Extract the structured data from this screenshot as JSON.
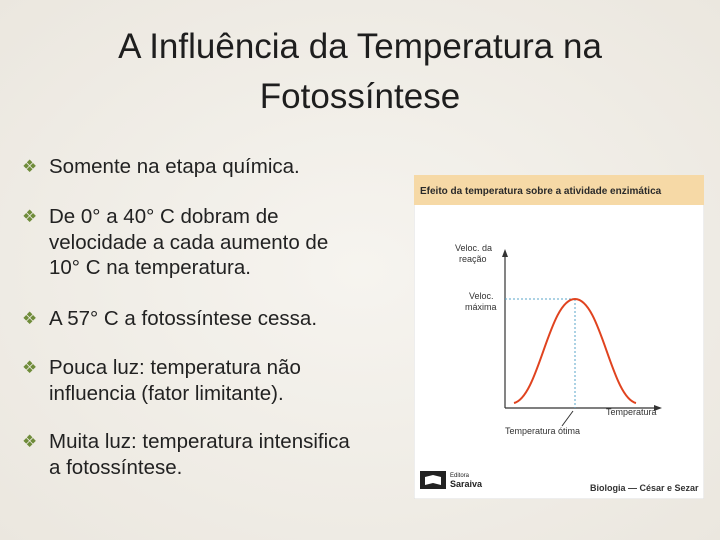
{
  "header": {
    "title_lines": [
      "A Influência da Temperatura na",
      "Fotossíntese"
    ]
  },
  "bullets": [
    {
      "lines": [
        "Somente na etapa química."
      ]
    },
    {
      "lines": [
        "De 0° a 40° C dobram de",
        "velocidade a cada aumento de",
        "10° C na temperatura."
      ]
    },
    {
      "lines": [
        "A 57° C a fotossíntese cessa."
      ]
    },
    {
      "lines": [
        "Pouca luz: temperatura não",
        "influencia (fator limitante)."
      ]
    },
    {
      "lines": [
        "Muita luz: temperatura intensifica",
        "a fotossíntese."
      ]
    }
  ],
  "figure": {
    "title": "Efeito da temperatura sobre a atividade enzimática",
    "y_label_lines": [
      "Veloc. da",
      "reação"
    ],
    "max_label_lines": [
      "Veloc.",
      "máxima"
    ],
    "x_label": "Temperatura",
    "optimum_label": "Temperatura ótima",
    "publisher_lines": [
      "Editora",
      "Saraiva"
    ],
    "credit": "Biologia — César e Sezar"
  }
}
